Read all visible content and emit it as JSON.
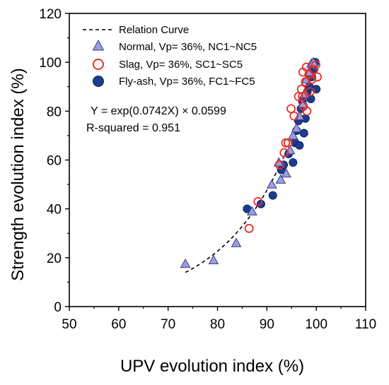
{
  "chart_data": {
    "type": "scatter",
    "title": "",
    "xlabel": "UPV evolution index (%)",
    "ylabel": "Strength evolution index (%)",
    "xlim": [
      50,
      110
    ],
    "ylim": [
      0,
      120
    ],
    "xticks": [
      50,
      60,
      70,
      80,
      90,
      100,
      110
    ],
    "yticks": [
      0,
      20,
      40,
      60,
      80,
      100,
      120
    ],
    "grid": false,
    "legend_position": "top-left",
    "curve": {
      "name": "Relation Curve",
      "equation": "Y = exp(0.0742X) × 0.0599",
      "r_squared": "R-squared = 0.951",
      "a": 0.0599,
      "b": 0.0742,
      "x_range": [
        73.5,
        100
      ],
      "color": "#000000",
      "style": "dashed"
    },
    "series": [
      {
        "name": "Normal, Vp= 36%, NC1~NC5",
        "marker": "triangle",
        "fill": "#9a9ee0",
        "stroke": "#3a3a80",
        "points": [
          [
            73.5,
            17.5
          ],
          [
            79.2,
            19
          ],
          [
            83.8,
            26
          ],
          [
            87,
            39
          ],
          [
            91,
            50
          ],
          [
            92.4,
            59
          ],
          [
            92.8,
            52
          ],
          [
            93.9,
            54.5
          ],
          [
            94.7,
            64
          ],
          [
            95.3,
            70
          ],
          [
            96,
            73
          ],
          [
            96.6,
            78
          ],
          [
            97.2,
            83
          ],
          [
            97.6,
            87
          ],
          [
            98,
            93
          ],
          [
            98.5,
            96
          ],
          [
            99,
            99.5
          ],
          [
            99.4,
            100
          ]
        ]
      },
      {
        "name": "Slag, Vp= 36%, SC1~SC5",
        "marker": "circle-open",
        "fill": "none",
        "stroke": "#e8302a",
        "points": [
          [
            86.4,
            32
          ],
          [
            88.2,
            43
          ],
          [
            92.6,
            58
          ],
          [
            93.5,
            63
          ],
          [
            93.8,
            67
          ],
          [
            94.3,
            67
          ],
          [
            94.9,
            81
          ],
          [
            95.5,
            78
          ],
          [
            96.4,
            86
          ],
          [
            97,
            89
          ],
          [
            97.4,
            82
          ],
          [
            97.8,
            92
          ],
          [
            98.1,
            80
          ],
          [
            98.5,
            95
          ],
          [
            98.8,
            88
          ],
          [
            99.1,
            93
          ],
          [
            99.5,
            97
          ],
          [
            99.9,
            99
          ],
          [
            100.2,
            94
          ],
          [
            97.3,
            96
          ],
          [
            98,
            98
          ],
          [
            97.2,
            86
          ]
        ]
      },
      {
        "name": "Fly-ash, Vp= 36%, FC1~FC5",
        "marker": "circle-filled",
        "fill": "#1a3d8f",
        "stroke": "#0c2260",
        "points": [
          [
            86,
            40
          ],
          [
            88.8,
            42
          ],
          [
            91.2,
            45.5
          ],
          [
            92.9,
            56
          ],
          [
            93.4,
            58
          ],
          [
            94.4,
            62.5
          ],
          [
            95.3,
            59
          ],
          [
            95.7,
            67
          ],
          [
            96,
            72
          ],
          [
            96.4,
            76
          ],
          [
            96.9,
            81
          ],
          [
            97.2,
            84
          ],
          [
            97.5,
            71
          ],
          [
            97.8,
            77
          ],
          [
            98.2,
            88
          ],
          [
            98.6,
            90
          ],
          [
            99.1,
            94
          ],
          [
            99.5,
            97
          ],
          [
            99.8,
            100
          ],
          [
            100,
            89
          ],
          [
            96.6,
            66
          ],
          [
            98.9,
            85
          ]
        ]
      }
    ]
  }
}
